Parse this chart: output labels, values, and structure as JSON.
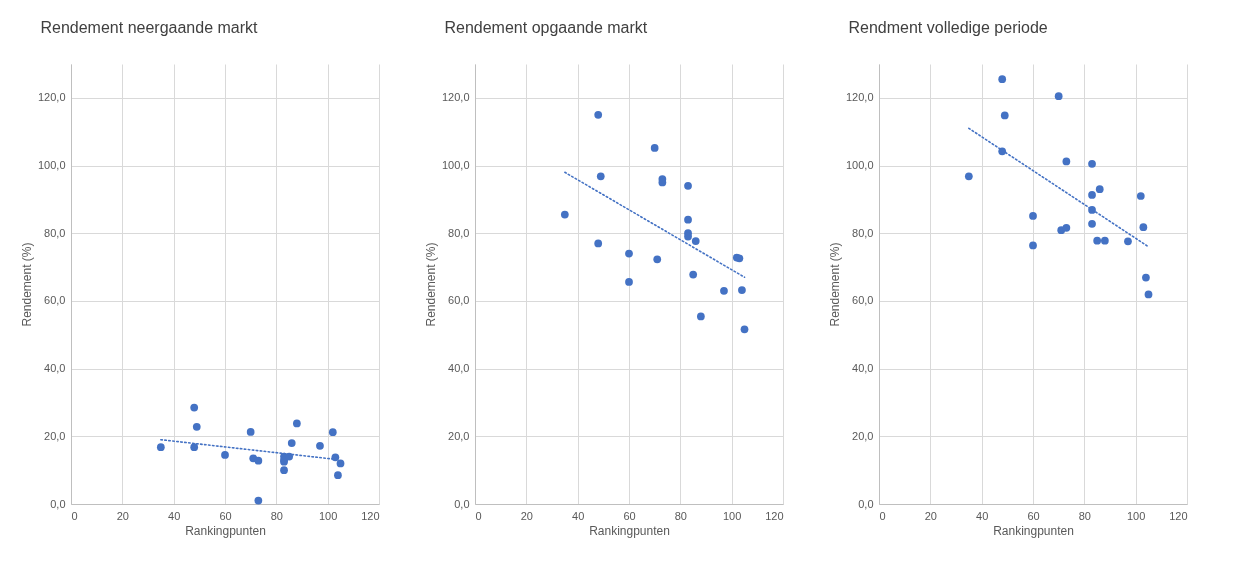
{
  "chart_data": [
    {
      "type": "scatter",
      "title": "Rendement neergaande markt",
      "xlabel": "Rankingpunten",
      "ylabel": "Rendement (%)",
      "xlim": [
        0,
        120
      ],
      "xticks": [
        0,
        20,
        40,
        60,
        80,
        100,
        120
      ],
      "ylim": [
        0,
        130
      ],
      "yticks": [
        {
          "value": 0,
          "label": "0,0"
        },
        {
          "value": 20,
          "label": "20,0"
        },
        {
          "value": 40,
          "label": "40,0"
        },
        {
          "value": 60,
          "label": "60,0"
        },
        {
          "value": 80,
          "label": "80,0"
        },
        {
          "value": 100,
          "label": "100,0"
        },
        {
          "value": 120,
          "label": "120,0"
        }
      ],
      "grid": true,
      "series": [
        {
          "color": "#4472c4",
          "marker": "circle",
          "x": [
            35,
            48,
            48,
            49,
            60,
            70,
            71,
            73,
            73,
            83,
            83,
            83,
            83,
            85,
            86,
            88,
            97,
            102,
            103,
            104,
            105
          ],
          "values": [
            16.8,
            28.5,
            16.8,
            22.8,
            14.5,
            21.3,
            13.5,
            12.8,
            1,
            14,
            12.5,
            13,
            10,
            14,
            18,
            23.8,
            17.2,
            21.2,
            13.8,
            8.5,
            12
          ]
        },
        {
          "type": "line",
          "color": "#4472c4",
          "marker": "none",
          "line_style": "dotted",
          "x": [
            35,
            103
          ],
          "values": [
            19,
            13.2
          ]
        }
      ]
    },
    {
      "type": "scatter",
      "title": "Rendement opgaande markt",
      "xlabel": "Rankingpunten",
      "ylabel": "Rendement (%)",
      "xlim": [
        0,
        120
      ],
      "xticks": [
        0,
        20,
        40,
        60,
        80,
        100,
        120
      ],
      "ylim": [
        0,
        130
      ],
      "yticks": [
        {
          "value": 0,
          "label": "0,0"
        },
        {
          "value": 20,
          "label": "20,0"
        },
        {
          "value": 40,
          "label": "40,0"
        },
        {
          "value": 60,
          "label": "60,0"
        },
        {
          "value": 80,
          "label": "80,0"
        },
        {
          "value": 100,
          "label": "100,0"
        },
        {
          "value": 120,
          "label": "120,0"
        }
      ],
      "grid": true,
      "series": [
        {
          "color": "#4472c4",
          "marker": "circle",
          "x": [
            35,
            48,
            48,
            49,
            60,
            60,
            70,
            71,
            73,
            73,
            83,
            83,
            83,
            83,
            85,
            86,
            88,
            97,
            102,
            103,
            104,
            105
          ],
          "values": [
            85.5,
            115,
            77,
            96.8,
            74,
            65.6,
            105.2,
            72.3,
            96,
            95,
            94,
            84,
            80,
            79,
            67.8,
            77.7,
            55.4,
            63,
            72.8,
            72.6,
            63.2,
            51.6
          ]
        },
        {
          "type": "line",
          "color": "#4472c4",
          "marker": "none",
          "line_style": "dotted",
          "x": [
            35,
            105
          ],
          "values": [
            98,
            67
          ]
        }
      ]
    },
    {
      "type": "scatter",
      "title": "Rendment volledige periode",
      "xlabel": "Rankingpunten",
      "ylabel": "Rendement (%)",
      "xlim": [
        0,
        120
      ],
      "xticks": [
        0,
        20,
        40,
        60,
        80,
        100,
        120
      ],
      "ylim": [
        0,
        130
      ],
      "yticks": [
        {
          "value": 0,
          "label": "0,0"
        },
        {
          "value": 20,
          "label": "20,0"
        },
        {
          "value": 40,
          "label": "40,0"
        },
        {
          "value": 60,
          "label": "60,0"
        },
        {
          "value": 80,
          "label": "80,0"
        },
        {
          "value": 100,
          "label": "100,0"
        },
        {
          "value": 120,
          "label": "120,0"
        }
      ],
      "grid": true,
      "series": [
        {
          "color": "#4472c4",
          "marker": "circle",
          "x": [
            35,
            48,
            48,
            49,
            60,
            60,
            70,
            71,
            73,
            73,
            83,
            83,
            83,
            83,
            85,
            86,
            88,
            97,
            102,
            103,
            104,
            105
          ],
          "values": [
            96.8,
            125.5,
            104.2,
            114.8,
            85.1,
            76.4,
            120.5,
            80.9,
            81.6,
            101.2,
            100.5,
            91.3,
            86.9,
            82.8,
            77.8,
            93,
            77.8,
            77.6,
            91,
            81.8,
            66.9,
            61.9
          ]
        },
        {
          "type": "line",
          "color": "#4472c4",
          "marker": "none",
          "line_style": "dotted",
          "x": [
            35,
            105
          ],
          "values": [
            111,
            76
          ]
        }
      ]
    }
  ]
}
